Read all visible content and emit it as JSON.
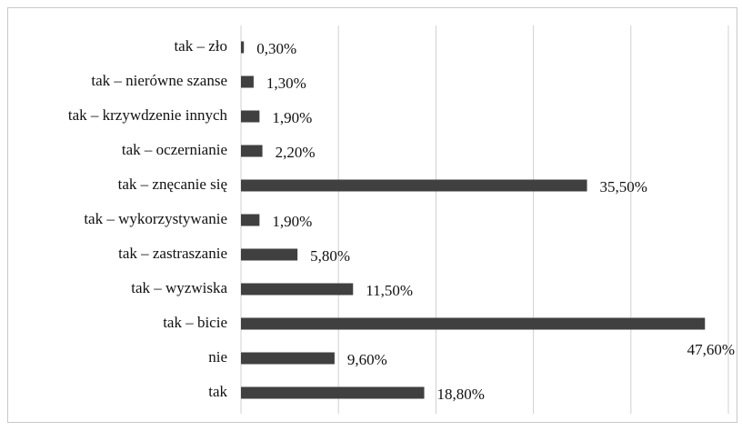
{
  "chart_data": {
    "type": "bar",
    "orientation": "horizontal",
    "categories": [
      "tak – zło",
      "tak – nierówne szanse",
      "tak – krzywdzenie innych",
      "tak – oczernianie",
      "tak – znęcanie się",
      "tak – wykorzystywanie",
      "tak – zastraszanie",
      "tak – wyzwiska",
      "tak – bicie",
      "nie",
      "tak"
    ],
    "values": [
      0.3,
      1.3,
      1.9,
      2.2,
      35.5,
      1.9,
      5.8,
      11.5,
      47.6,
      9.6,
      18.8
    ],
    "value_labels": [
      "0,30%",
      "1,30%",
      "1,90%",
      "2,20%",
      "35,50%",
      "1,90%",
      "5,80%",
      "11,50%",
      "47,60%",
      "9,60%",
      "18,80%"
    ],
    "color": "#404040",
    "xlim": [
      0,
      50
    ],
    "xticks": [
      0,
      10,
      20,
      30,
      40,
      50
    ],
    "grid": true
  }
}
